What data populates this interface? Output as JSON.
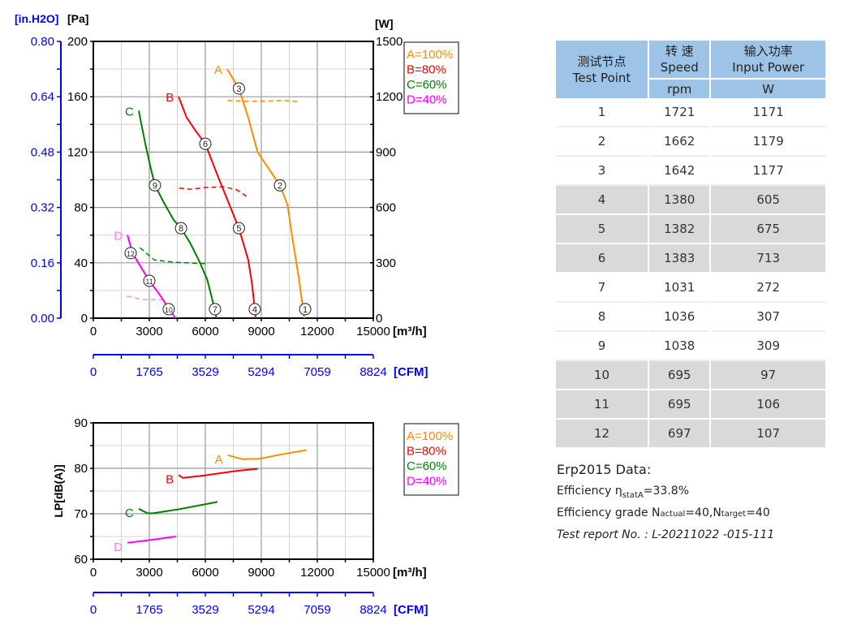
{
  "chart_data": [
    {
      "type": "line",
      "title": "",
      "xlabel": "[m³/h]",
      "x2label": "[CFM]",
      "ylabel": "[Pa]",
      "y2label": "[in.H2O]",
      "y3label": "[W]",
      "xlim": [
        0,
        15000
      ],
      "ylim": [
        0,
        200
      ],
      "y2lim": [
        0,
        0.8
      ],
      "y3lim": [
        0,
        1500
      ],
      "xticks": [
        "0",
        "3000",
        "6000",
        "9000",
        "12000",
        "15000"
      ],
      "x2ticks": [
        "0",
        "1765",
        "3529",
        "5294",
        "7059",
        "8824"
      ],
      "yticks": [
        "0",
        "40",
        "80",
        "120",
        "160",
        "200"
      ],
      "y2ticks": [
        "0.00",
        "0.16",
        "0.32",
        "0.48",
        "0.64",
        "0.80"
      ],
      "y3ticks": [
        "0",
        "300",
        "600",
        "900",
        "1200",
        "1500"
      ],
      "grid": true,
      "legend_position": "right",
      "series": [
        {
          "name": "A=100%",
          "label": "A",
          "color": "#ff8c00",
          "label_color": "#ff8c00",
          "pressure": [
            [
              7170,
              180
            ],
            [
              7800,
              166
            ],
            [
              8300,
              145
            ],
            [
              8800,
              120
            ],
            [
              9500,
              106
            ],
            [
              10000,
              96
            ],
            [
              10400,
              82
            ],
            [
              10700,
              55
            ],
            [
              11000,
              30
            ],
            [
              11200,
              10
            ],
            [
              11300,
              0
            ]
          ],
          "power": [
            [
              7200,
              1180
            ],
            [
              8200,
              1175
            ],
            [
              9200,
              1176
            ],
            [
              10200,
              1180
            ],
            [
              11100,
              1172
            ]
          ]
        },
        {
          "name": "B=80%",
          "label": "B",
          "color": "#ff0000",
          "label_color": "#ff0000",
          "pressure": [
            [
              4570,
              160
            ],
            [
              5000,
              145
            ],
            [
              5500,
              135
            ],
            [
              6000,
              126
            ],
            [
              6600,
              105
            ],
            [
              7200,
              85
            ],
            [
              7800,
              65
            ],
            [
              8300,
              42
            ],
            [
              8500,
              25
            ],
            [
              8700,
              0
            ]
          ],
          "power": [
            [
              4600,
              705
            ],
            [
              5200,
              698
            ],
            [
              6000,
              708
            ],
            [
              7000,
              712
            ],
            [
              7700,
              695
            ],
            [
              8350,
              650
            ]
          ]
        },
        {
          "name": "C=60%",
          "label": "C",
          "color": "#008000",
          "label_color": "#008000",
          "pressure": [
            [
              2430,
              150
            ],
            [
              2800,
              125
            ],
            [
              3100,
              107
            ],
            [
              3300,
              96
            ],
            [
              3800,
              83
            ],
            [
              4300,
              71
            ],
            [
              4700,
              65
            ],
            [
              5200,
              54
            ],
            [
              5650,
              42
            ],
            [
              6100,
              28
            ],
            [
              6400,
              12
            ],
            [
              6600,
              0
            ]
          ],
          "power": [
            [
              2500,
              382
            ],
            [
              3260,
              316
            ],
            [
              4300,
              303
            ],
            [
              6100,
              295
            ]
          ]
        },
        {
          "name": "D=40%",
          "label": "D",
          "color": "#ff00ff",
          "label_color": "#ff77ff",
          "power_color": "#ff88ff",
          "pressure": [
            [
              1830,
              60
            ],
            [
              2100,
              47
            ],
            [
              2500,
              38
            ],
            [
              3000,
              27
            ],
            [
              3500,
              18
            ],
            [
              4000,
              8
            ],
            [
              4400,
              0
            ]
          ],
          "power": [
            [
              1800,
              119
            ],
            [
              2600,
              101
            ],
            [
              3900,
              100
            ]
          ]
        }
      ],
      "test_points": [
        {
          "label": "1",
          "x": 11350,
          "y": 6.5
        },
        {
          "label": "2",
          "x": 10000,
          "y": 96
        },
        {
          "label": "3",
          "x": 7800,
          "y": 166
        },
        {
          "label": "4",
          "x": 8650,
          "y": 6.5
        },
        {
          "label": "5",
          "x": 7800,
          "y": 65
        },
        {
          "label": "6",
          "x": 6000,
          "y": 126
        },
        {
          "label": "7",
          "x": 6520,
          "y": 6.5
        },
        {
          "label": "8",
          "x": 4700,
          "y": 65
        },
        {
          "label": "9",
          "x": 3300,
          "y": 96
        },
        {
          "label": "10",
          "x": 4040,
          "y": 6.5
        },
        {
          "label": "11",
          "x": 3000,
          "y": 27
        },
        {
          "label": "12",
          "x": 2000,
          "y": 47
        }
      ]
    },
    {
      "type": "line",
      "title": "",
      "xlabel": "[m³/h]",
      "x2label": "[CFM]",
      "ylabel": "LP[dB(A)]",
      "xlim": [
        0,
        15000
      ],
      "ylim": [
        60,
        90
      ],
      "xticks": [
        "0",
        "3000",
        "6000",
        "9000",
        "12000",
        "15000"
      ],
      "x2ticks": [
        "0",
        "1765",
        "3529",
        "5294",
        "7059",
        "8824"
      ],
      "yticks": [
        "60",
        "70",
        "80",
        "90"
      ],
      "grid": true,
      "legend_position": "right",
      "series": [
        {
          "name": "A=100%",
          "label": "A",
          "color": "#ff8c00",
          "label_color": "#ff8c00",
          "values": [
            [
              7200,
              82.9
            ],
            [
              8000,
              82.0
            ],
            [
              8900,
              82.1
            ],
            [
              10000,
              83.0
            ],
            [
              11400,
              84.0
            ]
          ]
        },
        {
          "name": "B=80%",
          "label": "B",
          "color": "#ff0000",
          "label_color": "#ff0000",
          "values": [
            [
              4570,
              78.5
            ],
            [
              4800,
              77.9
            ],
            [
              5900,
              78.4
            ],
            [
              7600,
              79.4
            ],
            [
              8800,
              79.9
            ]
          ]
        },
        {
          "name": "C=60%",
          "label": "C",
          "color": "#008000",
          "label_color": "#008000",
          "values": [
            [
              2430,
              71.1
            ],
            [
              2900,
              70.1
            ],
            [
              3200,
              70.1
            ],
            [
              4600,
              71.0
            ],
            [
              6650,
              72.6
            ]
          ]
        },
        {
          "name": "D=40%",
          "label": "D",
          "color": "#ff00ff",
          "label_color": "#ff77ff",
          "values": [
            [
              1830,
              63.6
            ],
            [
              3000,
              64.2
            ],
            [
              4430,
              65.0
            ]
          ]
        }
      ]
    }
  ],
  "table": {
    "headers": {
      "col1_cn": "测试节点",
      "col1_en": "Test Point",
      "col2_cn": "转 速",
      "col2_en": "Speed",
      "col2_unit": "rpm",
      "col3_cn": "输入功率",
      "col3_en": "Input Power",
      "col3_unit": "W"
    },
    "rows": [
      [
        "1",
        "1721",
        "1171"
      ],
      [
        "2",
        "1662",
        "1179"
      ],
      [
        "3",
        "1642",
        "1177"
      ],
      [
        "4",
        "1380",
        "605"
      ],
      [
        "5",
        "1382",
        "675"
      ],
      [
        "6",
        "1383",
        "713"
      ],
      [
        "7",
        "1031",
        "272"
      ],
      [
        "8",
        "1036",
        "307"
      ],
      [
        "9",
        "1038",
        "309"
      ],
      [
        "10",
        "695",
        "97"
      ],
      [
        "11",
        "695",
        "106"
      ],
      [
        "12",
        "697",
        "107"
      ]
    ]
  },
  "erp": {
    "title": "Erp2015  Data:",
    "eff_label": "Efficiency η",
    "eff_sub": "statA",
    "eff_value": "=33.8%",
    "grade_label": "Efficiency grade  N",
    "grade_actual_sub": "actual",
    "grade_actual_val": "=40,N",
    "grade_target_sub": "target",
    "grade_target_val": "=40",
    "report": "Test report No.  : L-20211022 -015-111"
  },
  "colors": {
    "axis_blue": "#0000ff",
    "header_blue": "#9dc3e6",
    "row_gray": "#d9d9d9"
  }
}
